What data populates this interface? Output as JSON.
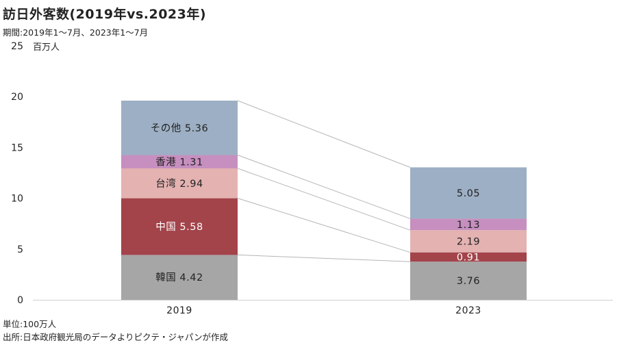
{
  "title": "訪日外客数(2019年vs.2023年)",
  "subtitle": "期間:2019年1～7月、2023年1～7月",
  "footer": {
    "unit_note": "単位:100万人",
    "source": "出所:日本政府観光局のデータよりピクテ・ジャパンが作成"
  },
  "chart_data": {
    "type": "bar",
    "stacked": true,
    "y_unit_label": "百万人",
    "ylim": [
      0,
      25
    ],
    "yticks": [
      0,
      5,
      10,
      15,
      20,
      25
    ],
    "grid": false,
    "categories": [
      "2019",
      "2023"
    ],
    "series": [
      {
        "name": "韓国",
        "values": [
          4.42,
          3.76
        ],
        "color": "#a6a6a6",
        "label_color": "#222222",
        "labels": [
          "韓国 4.42",
          "3.76"
        ]
      },
      {
        "name": "中国",
        "values": [
          5.58,
          0.91
        ],
        "color": "#a3434a",
        "label_color": "#ffffff",
        "labels": [
          "中国 5.58",
          "0.91"
        ]
      },
      {
        "name": "台湾",
        "values": [
          2.94,
          2.19
        ],
        "color": "#e3b2b1",
        "label_color": "#222222",
        "labels": [
          "台湾 2.94",
          "2.19"
        ]
      },
      {
        "name": "香港",
        "values": [
          1.31,
          1.13
        ],
        "color": "#c68fbf",
        "label_color": "#222222",
        "labels": [
          "香港 1.31",
          "1.13"
        ]
      },
      {
        "name": "その他",
        "values": [
          5.36,
          5.05
        ],
        "color": "#9dafc4",
        "label_color": "#222222",
        "labels": [
          "その他 5.36",
          "5.05"
        ]
      }
    ],
    "connector_color": "#b5b5b5"
  }
}
